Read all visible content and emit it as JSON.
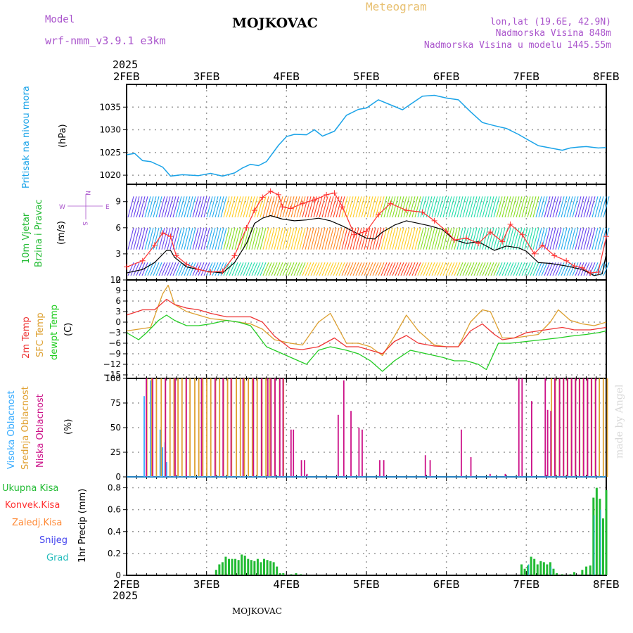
{
  "header": {
    "model_label": "Model",
    "model_name": "wrf-nmm_v3.9.1 e3km",
    "title": "Meteogram",
    "station": "MOJKOVAC",
    "lonlat": "lon,lat (19.6E, 42.9N)",
    "elevation": "Nadmorska Visina 848m",
    "model_elevation": "Nadmorska Visina u modelu 1445.55m",
    "year": "2025",
    "footer_station": "MOJKOVAC",
    "credit": "made by Angel"
  },
  "colors": {
    "pressure": "#1aa3e8",
    "wind_speed": "#000000",
    "gust": "#ff3030",
    "t2m": "#ee3333",
    "sfc": "#dda030",
    "dewpt": "#22cc22",
    "cloud_high": "#33aaff",
    "cloud_mid": "#e0a030",
    "cloud_low": "#cc1188",
    "precip_total": "#22bb33",
    "precip_conv": "#ff3030",
    "precip_frozen": "#ff8833",
    "precip_snow": "#4444ee",
    "precip_hail": "#22bbbb",
    "grid": "#999999",
    "model_text": "#aa55cc",
    "title_text": "#e8c070"
  },
  "chart_data": [
    {
      "type": "line",
      "id": "pressure",
      "ylabel_parts": [
        "Pritisak na nivou mora",
        "(hPa)"
      ],
      "xlim_days": [
        0,
        6
      ],
      "x_tick_labels": [
        "2FEB",
        "3FEB",
        "4FEB",
        "5FEB",
        "6FEB",
        "7FEB",
        "8FEB"
      ],
      "ylim": [
        1018,
        1040
      ],
      "yticks": [
        1020,
        1025,
        1030,
        1035
      ],
      "series": [
        {
          "name": "MSLP",
          "x": [
            0,
            0.1,
            0.2,
            0.3,
            0.45,
            0.55,
            0.7,
            0.9,
            1.05,
            1.2,
            1.35,
            1.45,
            1.55,
            1.65,
            1.75,
            1.9,
            2.0,
            2.1,
            2.25,
            2.35,
            2.45,
            2.6,
            2.75,
            2.9,
            3.0,
            3.15,
            3.3,
            3.45,
            3.55,
            3.7,
            3.85,
            4.0,
            4.15,
            4.3,
            4.45,
            4.6,
            4.75,
            4.9,
            5.0,
            5.15,
            5.3,
            5.45,
            5.55,
            5.65,
            5.75,
            5.9,
            6.0
          ],
          "values": [
            1024.5,
            1024.8,
            1023.2,
            1023.0,
            1021.8,
            1019.8,
            1020.1,
            1019.9,
            1020.4,
            1019.8,
            1020.5,
            1021.6,
            1022.4,
            1022.1,
            1023.0,
            1026.6,
            1028.5,
            1029.0,
            1028.9,
            1030.0,
            1028.6,
            1029.7,
            1033.2,
            1034.5,
            1034.8,
            1036.6,
            1035.5,
            1034.4,
            1035.6,
            1037.4,
            1037.6,
            1037.0,
            1036.6,
            1034.0,
            1031.6,
            1030.9,
            1030.3,
            1029.0,
            1028.0,
            1026.5,
            1026.0,
            1025.5,
            1026.0,
            1026.2,
            1026.3,
            1026.0,
            1026.1
          ]
        }
      ]
    },
    {
      "type": "line",
      "id": "wind",
      "ylabel_parts": [
        "10m Vjetar",
        "Brzina i Pravac",
        "(m/s)"
      ],
      "compass": {
        "n": "N",
        "s": "S",
        "w": "W",
        "e": "E"
      },
      "ylim": [
        0,
        11
      ],
      "yticks": [
        0,
        3,
        6,
        9
      ],
      "bands": [
        {
          "name": "low",
          "y": [
            0.5,
            2.0
          ]
        },
        {
          "name": "mid",
          "y": [
            3.5,
            6.0
          ]
        },
        {
          "name": "high",
          "y": [
            7.2,
            9.6
          ]
        }
      ],
      "series": [
        {
          "name": "speed",
          "x": [
            0,
            0.2,
            0.35,
            0.5,
            0.55,
            0.6,
            0.75,
            0.9,
            1.0,
            1.2,
            1.35,
            1.5,
            1.6,
            1.7,
            1.8,
            1.95,
            2.1,
            2.25,
            2.4,
            2.55,
            2.7,
            2.85,
            3.0,
            3.1,
            3.2,
            3.35,
            3.5,
            3.65,
            3.8,
            3.95,
            4.1,
            4.25,
            4.4,
            4.6,
            4.75,
            4.9,
            5.0,
            5.15,
            5.3,
            5.5,
            5.7,
            5.85,
            5.95,
            6.0
          ],
          "values": [
            0.8,
            1.2,
            2.0,
            3.4,
            3.4,
            2.6,
            1.5,
            1.2,
            1.0,
            0.8,
            2.0,
            4.2,
            6.5,
            7.1,
            7.4,
            7.0,
            6.8,
            6.9,
            7.1,
            6.8,
            6.2,
            5.5,
            4.8,
            4.7,
            5.5,
            6.3,
            6.8,
            6.5,
            6.2,
            5.8,
            4.6,
            4.2,
            4.4,
            3.4,
            3.9,
            3.7,
            3.3,
            2.0,
            1.9,
            1.6,
            1.2,
            0.5,
            0.7,
            3.0
          ]
        },
        {
          "name": "gust",
          "x": [
            0,
            0.2,
            0.35,
            0.45,
            0.55,
            0.62,
            0.75,
            0.9,
            1.05,
            1.2,
            1.35,
            1.5,
            1.6,
            1.7,
            1.8,
            1.9,
            1.95,
            2.05,
            2.2,
            2.35,
            2.5,
            2.6,
            2.7,
            2.85,
            3.0,
            3.15,
            3.3,
            3.5,
            3.7,
            3.85,
            4.0,
            4.1,
            4.25,
            4.4,
            4.55,
            4.7,
            4.8,
            4.95,
            5.1,
            5.2,
            5.35,
            5.5,
            5.6,
            5.7,
            5.8,
            5.9,
            6.0
          ],
          "values": [
            1.5,
            2.2,
            4.0,
            5.4,
            5.0,
            2.8,
            1.8,
            1.2,
            0.9,
            1.0,
            2.8,
            6.0,
            8.0,
            9.5,
            10.2,
            9.8,
            8.4,
            8.2,
            8.8,
            9.2,
            9.8,
            10.0,
            8.4,
            5.2,
            5.6,
            7.5,
            8.8,
            8.0,
            7.8,
            6.8,
            5.6,
            4.6,
            4.8,
            4.2,
            5.5,
            4.4,
            6.4,
            5.2,
            3.0,
            4.0,
            2.8,
            2.2,
            1.6,
            1.4,
            0.8,
            0.9,
            5.0
          ]
        }
      ]
    },
    {
      "type": "line",
      "id": "temperature",
      "ylabel_parts": [
        "2m Temp",
        "SFC Temp",
        "dewpt Temp",
        "(C)"
      ],
      "ylim": [
        -16,
        12
      ],
      "yticks": [
        -15,
        -12,
        -9,
        -6,
        -3,
        0,
        3,
        6,
        9,
        12
      ],
      "series": [
        {
          "name": "2m Temp",
          "x": [
            0,
            0.2,
            0.35,
            0.5,
            0.6,
            0.75,
            0.9,
            1.05,
            1.25,
            1.4,
            1.55,
            1.7,
            1.85,
            2.05,
            2.2,
            2.4,
            2.6,
            2.75,
            2.9,
            3.05,
            3.2,
            3.35,
            3.5,
            3.65,
            3.85,
            4.0,
            4.15,
            4.3,
            4.45,
            4.6,
            4.7,
            4.85,
            5.0,
            5.15,
            5.3,
            5.45,
            5.6,
            5.8,
            6.0
          ],
          "values": [
            2.0,
            3.5,
            3.5,
            6.5,
            5.0,
            4.0,
            3.5,
            2.5,
            1.5,
            1.5,
            1.5,
            0,
            -4,
            -7.5,
            -7.8,
            -7,
            -4.5,
            -7,
            -7,
            -8,
            -9,
            -5.5,
            -3.8,
            -6,
            -6.8,
            -7,
            -7,
            -2.5,
            -0.5,
            -3.5,
            -5,
            -4.5,
            -3,
            -2.5,
            -2.0,
            -1.5,
            -2.2,
            -2.2,
            -1.5
          ]
        },
        {
          "name": "SFC Temp",
          "x": [
            0,
            0.15,
            0.3,
            0.45,
            0.52,
            0.6,
            0.75,
            0.9,
            1.05,
            1.25,
            1.4,
            1.55,
            1.7,
            1.85,
            2.05,
            2.2,
            2.4,
            2.55,
            2.75,
            2.9,
            3.05,
            3.2,
            3.35,
            3.5,
            3.65,
            3.85,
            4.0,
            4.15,
            4.3,
            4.45,
            4.55,
            4.7,
            4.85,
            5.0,
            5.15,
            5.3,
            5.4,
            5.55,
            5.7,
            5.85,
            6.0
          ],
          "values": [
            -2.5,
            -2,
            -1.5,
            8,
            10.5,
            5,
            3,
            2,
            1,
            0.5,
            0,
            -0.5,
            -2,
            -5,
            -6,
            -6.5,
            0,
            2.5,
            -6,
            -6,
            -7,
            -9.5,
            -4,
            2.0,
            -2.5,
            -6.5,
            -7,
            -7,
            0,
            3.5,
            3.0,
            -4.5,
            -4.5,
            -4,
            -3.5,
            0,
            3.5,
            0.5,
            -0.5,
            -1,
            0
          ]
        },
        {
          "name": "dewpt Temp",
          "x": [
            0,
            0.15,
            0.25,
            0.4,
            0.5,
            0.6,
            0.75,
            0.9,
            1.05,
            1.25,
            1.4,
            1.55,
            1.75,
            1.9,
            2.1,
            2.25,
            2.4,
            2.55,
            2.75,
            2.9,
            3.05,
            3.2,
            3.35,
            3.55,
            3.75,
            3.95,
            4.1,
            4.25,
            4.4,
            4.5,
            4.65,
            4.8,
            5.0,
            5.2,
            5.4,
            5.55,
            5.75,
            5.9,
            6.0
          ],
          "values": [
            -3,
            -5,
            -3,
            0.5,
            2,
            0.5,
            -1,
            -1,
            -0.5,
            0.5,
            0,
            -1,
            -7,
            -8.5,
            -10.5,
            -12,
            -8,
            -7,
            -8,
            -9,
            -11,
            -14,
            -11,
            -8,
            -9,
            -10,
            -11,
            -11,
            -12,
            -13.5,
            -6,
            -6,
            -5.5,
            -5,
            -4.5,
            -4,
            -3.5,
            -3,
            -2.5
          ]
        }
      ]
    },
    {
      "type": "bar",
      "id": "cloud",
      "ylabel_parts": [
        "Visoka Oblacnost",
        "Srednja Oblacnost",
        "Niska Oblacnost",
        "(%)"
      ],
      "ylim": [
        0,
        100
      ],
      "yticks": [
        0,
        25,
        50,
        75,
        100
      ],
      "series": [
        {
          "name": "Visoka",
          "x": [
            0.22,
            0.3,
            0.42,
            0.45,
            0.48,
            0.5
          ],
          "values": [
            82,
            98,
            48,
            30,
            35,
            15
          ]
        },
        {
          "name": "Srednja",
          "x": [
            0.24,
            0.3,
            0.36,
            0.42,
            0.47,
            0.53,
            0.58,
            0.63,
            0.68,
            0.73,
            0.78,
            0.84,
            0.89,
            0.94,
            0.99,
            1.04,
            1.1,
            1.15,
            1.2,
            1.25,
            1.3,
            1.36,
            1.41,
            1.46,
            1.51,
            1.56,
            1.62,
            1.68,
            1.73,
            1.78,
            1.84,
            1.9,
            1.95,
            5.3,
            5.35,
            5.4,
            5.45,
            5.5,
            5.55,
            5.6,
            5.65,
            5.7,
            5.75,
            5.8,
            5.85,
            5.9,
            5.95,
            6.0
          ],
          "values": [
            100,
            100,
            100,
            100,
            100,
            100,
            100,
            100,
            100,
            100,
            100,
            100,
            100,
            100,
            100,
            100,
            100,
            100,
            100,
            100,
            100,
            100,
            100,
            100,
            100,
            100,
            100,
            100,
            100,
            100,
            100,
            100,
            100,
            100,
            100,
            100,
            100,
            100,
            100,
            100,
            100,
            100,
            100,
            100,
            100,
            100,
            100,
            100
          ]
        },
        {
          "name": "Niska",
          "x": [
            0.26,
            0.34,
            0.5,
            0.62,
            0.76,
            0.95,
            1.12,
            1.22,
            1.32,
            1.47,
            1.6,
            1.7,
            1.78,
            1.82,
            1.87,
            1.93,
            1.97,
            2.07,
            2.1,
            2.2,
            2.24,
            2.27,
            2.66,
            2.73,
            2.82,
            2.92,
            2.96,
            3.18,
            3.23,
            3.75,
            3.81,
            4.2,
            4.32,
            4.56,
            4.75,
            4.92,
            4.96,
            5.08,
            5.25,
            5.28,
            5.32,
            5.37,
            5.43,
            5.48,
            5.53,
            5.58,
            5.63,
            5.68,
            5.73,
            5.78,
            5.83,
            5.88
          ],
          "values": [
            100,
            100,
            100,
            100,
            100,
            100,
            100,
            100,
            100,
            100,
            100,
            100,
            100,
            100,
            100,
            100,
            100,
            48,
            48,
            17,
            17,
            3,
            63,
            98,
            67,
            50,
            48,
            17,
            17,
            22,
            17,
            48,
            20,
            3,
            3,
            100,
            100,
            77,
            100,
            68,
            67,
            100,
            100,
            100,
            100,
            100,
            100,
            100,
            100,
            100,
            100,
            100
          ]
        }
      ]
    },
    {
      "type": "bar",
      "id": "precipitation",
      "ylabel_parts": [
        "1hr Precip (mm)"
      ],
      "legend": [
        "Ukupna Kisa",
        "Konvek.Kisa",
        "Zaledj.Kisa",
        "Snijeg",
        "Grad"
      ],
      "ylim": [
        0,
        0.9
      ],
      "yticks": [
        0,
        0.2,
        0.4,
        0.6,
        0.8
      ],
      "series": [
        {
          "name": "Ukupna Kisa",
          "x": [
            1.12,
            1.16,
            1.2,
            1.24,
            1.28,
            1.32,
            1.36,
            1.4,
            1.44,
            1.48,
            1.52,
            1.56,
            1.6,
            1.64,
            1.68,
            1.72,
            1.76,
            1.8,
            1.84,
            1.88,
            1.92,
            1.96,
            2.06,
            2.12,
            2.18,
            4.94,
            4.98,
            5.02,
            5.06,
            5.1,
            5.14,
            5.18,
            5.22,
            5.26,
            5.3,
            5.34,
            5.38,
            5.45,
            5.55,
            5.6,
            5.7,
            5.75,
            5.8,
            5.84,
            5.88,
            5.92,
            5.96,
            6.0
          ],
          "values": [
            0.05,
            0.1,
            0.12,
            0.17,
            0.15,
            0.15,
            0.15,
            0.14,
            0.19,
            0.18,
            0.15,
            0.14,
            0.13,
            0.15,
            0.12,
            0.15,
            0.14,
            0.13,
            0.12,
            0.08,
            0.02,
            0.02,
            0.01,
            0.02,
            0.01,
            0.1,
            0.06,
            0.09,
            0.17,
            0.15,
            0.1,
            0.13,
            0.12,
            0.1,
            0.12,
            0.06,
            0.02,
            0.01,
            0.01,
            0.03,
            0.05,
            0.08,
            0.09,
            0.71,
            0.8,
            0.7,
            0.52,
            0.78
          ]
        },
        {
          "name": "Grad",
          "x": [
            5.02,
            5.3,
            5.84,
            5.92
          ],
          "values": [
            0.1,
            0.08,
            0.55,
            0.6
          ]
        }
      ]
    }
  ]
}
